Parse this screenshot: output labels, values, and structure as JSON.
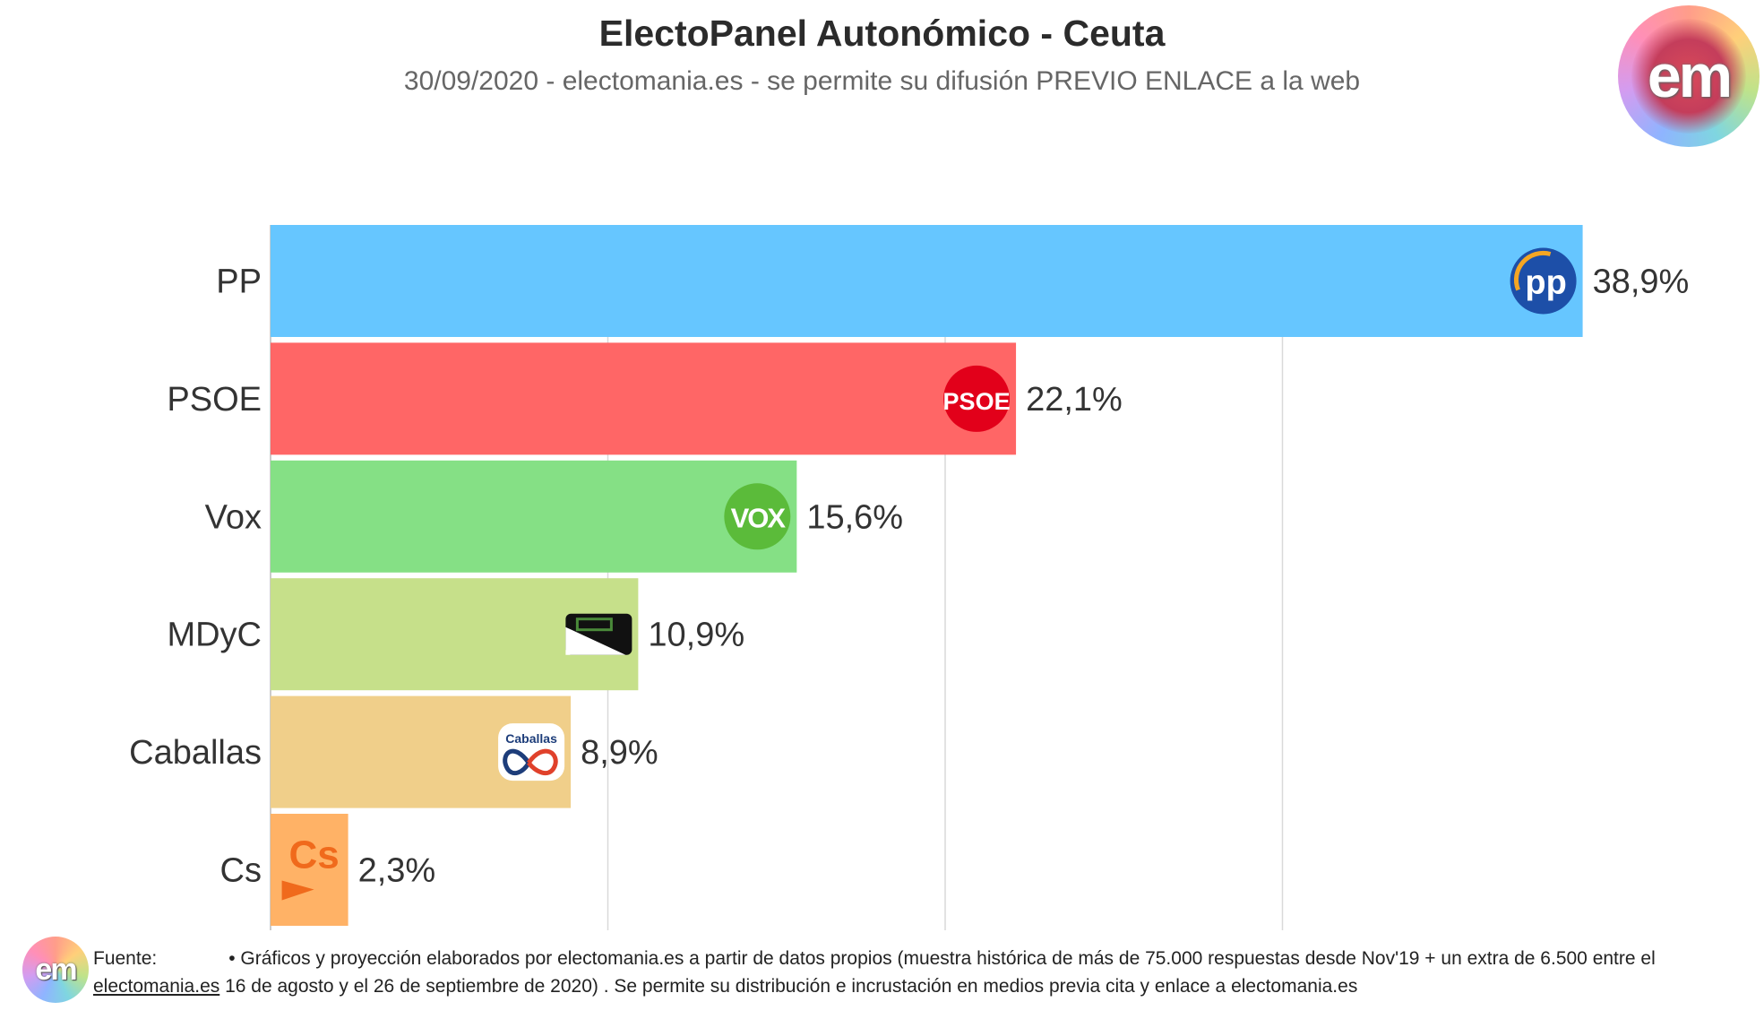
{
  "header": {
    "title": "ElectoPanel Autonómico - Ceuta",
    "subtitle": "30/09/2020 - electomania.es - se permite su difusión PREVIO ENLACE a la web",
    "logo_text": "em"
  },
  "chart_data": {
    "type": "bar",
    "orientation": "horizontal",
    "categories": [
      "PP",
      "PSOE",
      "Vox",
      "MDyC",
      "Caballas",
      "Cs"
    ],
    "values": [
      38.9,
      22.1,
      15.6,
      10.9,
      8.9,
      2.3
    ],
    "value_labels": [
      "38,9%",
      "22,1%",
      "15,6%",
      "10,9%",
      "8,9%",
      "2,3%"
    ],
    "colors": [
      "#66c6ff",
      "#ff6666",
      "#85e085",
      "#c6e08a",
      "#f0cf8a",
      "#ffb266"
    ],
    "party_logos": [
      "pp-logo",
      "psoe-logo",
      "vox-logo",
      "mdyc-logo",
      "caballas-logo",
      "cs-logo"
    ],
    "logo_texts": [
      "pp",
      "PSOE",
      "VOX",
      "",
      "Caballas",
      "Cs"
    ],
    "xlim": [
      0,
      40
    ],
    "gridlines": [
      10,
      20,
      30
    ],
    "grid": true,
    "xlabel": "",
    "ylabel": ""
  },
  "footer": {
    "logo_text": "em",
    "source_label": "Fuente:",
    "text_line1": "• Gráficos y proyección elaborados por electomania.es a partir de datos propios (muestra histórica de más de 75.000 respuestas desde Nov'19 + un extra de 6.500 entre el",
    "link_text": "electomania.es",
    "text_line2": "16 de agosto y el 26 de septiembre de 2020) . Se permite su distribución e incrustación en medios previa cita y enlace a electomania.es"
  }
}
